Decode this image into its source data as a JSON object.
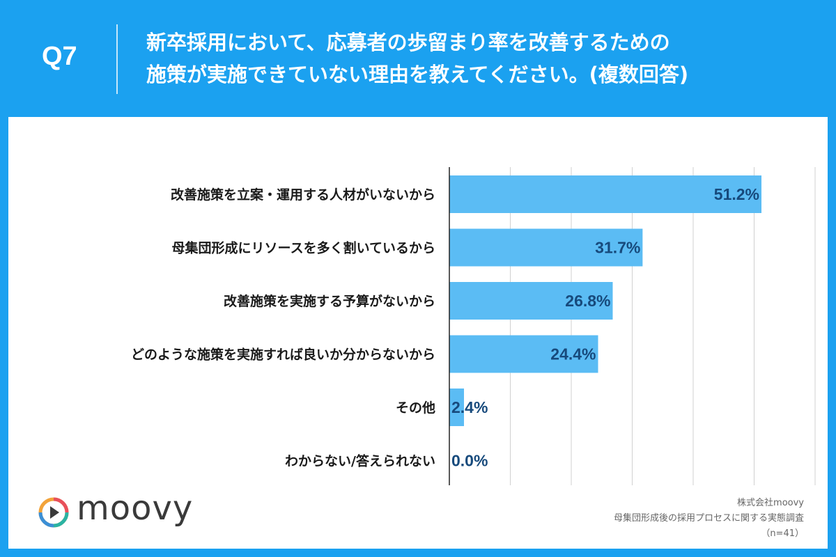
{
  "header": {
    "qnum": "Q7",
    "title_line1": "新卒採用において、応募者の歩留まり率を改善するための",
    "title_line2": "施策が実施できていない理由を教えてください。(複数回答)"
  },
  "colors": {
    "background": "#1ba1f0",
    "bar": "#5bbcf4",
    "value_text": "#174a7c",
    "grid": "#d0d0d0"
  },
  "chart_data": {
    "type": "bar",
    "orientation": "horizontal",
    "categories": [
      "改善施策を立案・運用する人材がいないから",
      "母集団形成にリソースを多く割いているから",
      "改善施策を実施する予算がないから",
      "どのような施策を実施すれば良いか分からないから",
      "その他",
      "わからない/答えられない"
    ],
    "values": [
      51.2,
      31.7,
      26.8,
      24.4,
      2.4,
      0.0
    ],
    "value_labels": [
      "51.2%",
      "31.7%",
      "26.8%",
      "24.4%",
      "2.4%",
      "0.0%"
    ],
    "xlim": [
      0,
      60
    ],
    "grid": true,
    "unit": "%"
  },
  "footer": {
    "logo_text": "moovy",
    "company": "株式会社moovy",
    "survey": "母集団形成後の採用プロセスに関する実態調査",
    "sample": "（n=41）"
  }
}
